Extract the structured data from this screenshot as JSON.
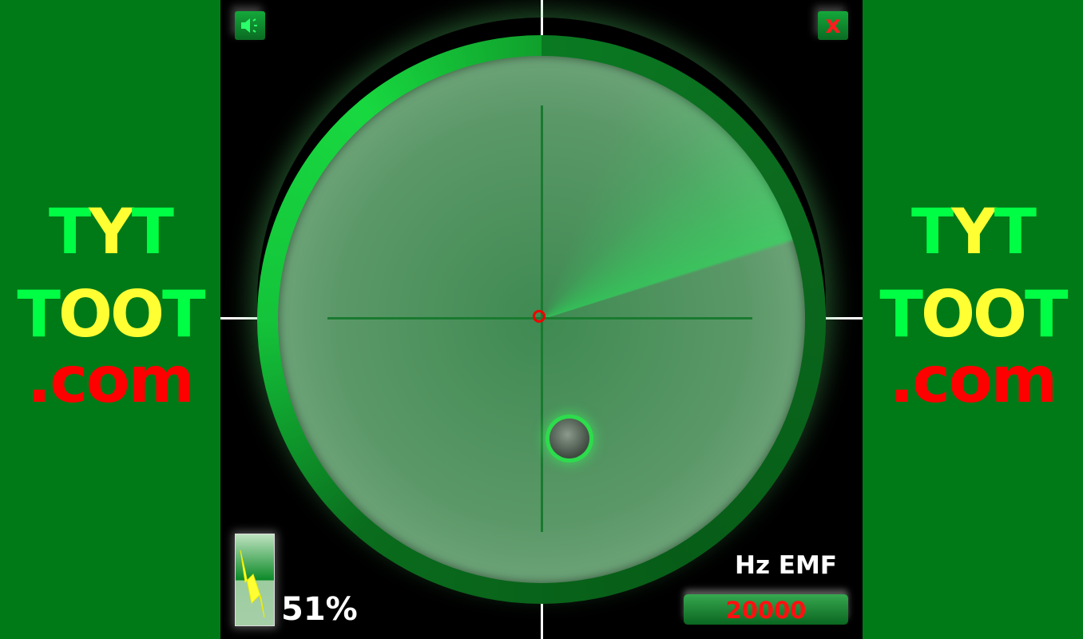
{
  "colors": {
    "side_bg": "#007a17",
    "logo_green": "#00ff44",
    "logo_yellow": "#ffff33",
    "logo_red": "#ff0000",
    "alert_red": "#ff1010"
  },
  "logo": {
    "line1": [
      "T",
      "Y",
      "T"
    ],
    "line2": [
      "T",
      "OO",
      "T"
    ],
    "line3": ".com"
  },
  "toolbar": {
    "sound_icon": "speaker-icon",
    "close_label": "x"
  },
  "battery": {
    "icon": "lightning-battery-icon",
    "level_percent": 51,
    "label": "51%"
  },
  "emf": {
    "unit_label": "Hz EMF",
    "frequency": "20000"
  }
}
